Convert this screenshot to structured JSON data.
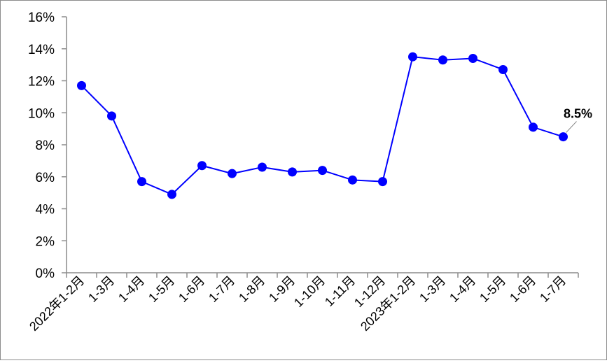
{
  "chart_data": {
    "type": "line",
    "title": "",
    "xlabel": "",
    "ylabel": "",
    "categories": [
      "2022年1-2月",
      "1-3月",
      "1-4月",
      "1-5月",
      "1-6月",
      "1-7月",
      "1-8月",
      "1-9月",
      "1-10月",
      "1-11月",
      "1-12月",
      "2023年1-2月",
      "1-3月",
      "1-4月",
      "1-5月",
      "1-6月",
      "1-7月"
    ],
    "series": [
      {
        "values": [
          11.7,
          9.8,
          5.7,
          4.9,
          6.7,
          6.2,
          6.6,
          6.3,
          6.4,
          5.8,
          5.7,
          13.5,
          13.3,
          13.4,
          12.7,
          9.1,
          8.5
        ]
      }
    ],
    "y_ticks": [
      "0%",
      "2%",
      "4%",
      "6%",
      "8%",
      "10%",
      "12%",
      "14%",
      "16%"
    ],
    "ylim": [
      0,
      16
    ],
    "grid": false,
    "legend": "none",
    "colors": {
      "series": "#0000ff",
      "axis": "#8c8c8c",
      "leader": "#7f7f7f"
    },
    "annotations": [
      {
        "point_index": 16,
        "text": "8.5%"
      }
    ]
  }
}
